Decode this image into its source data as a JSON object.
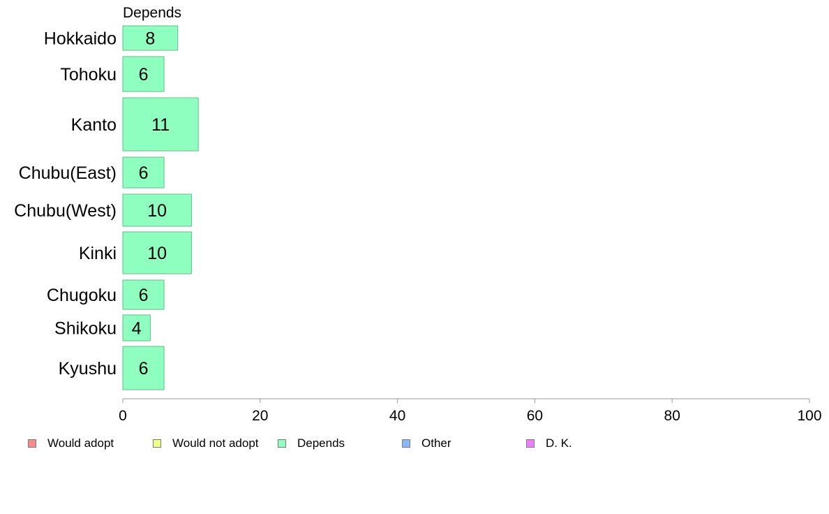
{
  "chart_data": {
    "type": "bar",
    "orientation": "horizontal",
    "series_header": "Depends",
    "categories": [
      "Hokkaido",
      "Tohoku",
      "Kanto",
      "Chubu(East)",
      "Chubu(West)",
      "Kinki",
      "Chugoku",
      "Shikoku",
      "Kyushu"
    ],
    "values": [
      8,
      6,
      11,
      6,
      10,
      10,
      6,
      4,
      6
    ],
    "value_labels": [
      "8",
      "6",
      "11",
      "6",
      "10",
      "10",
      "6",
      "4",
      "6"
    ],
    "xlim": [
      0,
      100
    ],
    "xticks": [
      "0",
      "20",
      "40",
      "60",
      "80",
      "100"
    ],
    "bar_color": "#8fffbf",
    "bar_edge_color": "#5fbf8a",
    "grid": false,
    "legend_position": "bottom",
    "legend": [
      {
        "label": "Would adopt",
        "color": "#ff8a8a"
      },
      {
        "label": "Would not adopt",
        "color": "#efff8a"
      },
      {
        "label": "Depends",
        "color": "#8fffbf"
      },
      {
        "label": "Other",
        "color": "#8ab8ff"
      },
      {
        "label": "D. K.",
        "color": "#f07cff"
      }
    ]
  }
}
